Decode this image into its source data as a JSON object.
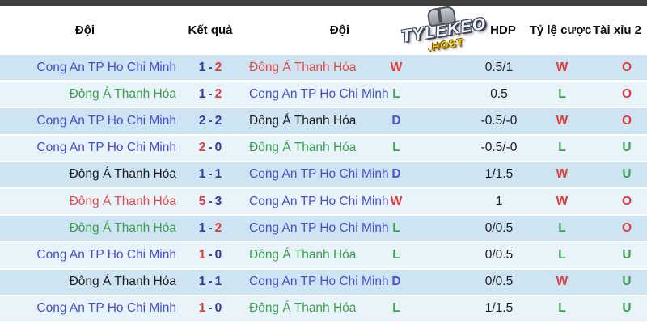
{
  "palette": {
    "blue": "#474fcb",
    "green": "#3da04e",
    "red": "#e04a4a",
    "black": "#1c1c1e",
    "navy": "#34399b",
    "result_red": "#e03c3c",
    "result_green": "#3da04e",
    "result_blue": "#474fcb",
    "hdp_text": "#1c1c1e",
    "row_dark": "#cfe4f3",
    "row_light": "#e8f3fa",
    "top_bar": "#3d3d3d",
    "logo_yellow": "#f2c21c"
  },
  "header": {
    "col_team_home": "Đội",
    "col_result": "Kết quả",
    "col_team_away": "Đội",
    "col_hdp": "HDP",
    "col_odds": "Tỷ lệ cược",
    "col_over_under": "Tài xỉu 2",
    "logo": {
      "line1": "TYLEKEO",
      "line2": ".HOST"
    }
  },
  "table": {
    "rows": [
      {
        "home": "Cong An TP Ho Chi Minh",
        "home_color": "blue",
        "score_home": "1",
        "score_home_color": "navy",
        "score_away": "2",
        "score_away_color": "result_red",
        "away": "Đông Á Thanh Hóa",
        "away_color": "red",
        "hdp_result": "W",
        "hdp_result_color": "result_red",
        "hdp": "0.5/1",
        "odds_result": "W",
        "odds_result_color": "result_red",
        "ou": "O",
        "ou_color": "result_red"
      },
      {
        "home": "Đông Á Thanh Hóa",
        "home_color": "green",
        "score_home": "1",
        "score_home_color": "navy",
        "score_away": "2",
        "score_away_color": "result_red",
        "away": "Cong An TP Ho Chi Minh",
        "away_color": "blue",
        "hdp_result": "L",
        "hdp_result_color": "result_green",
        "hdp": "0.5",
        "odds_result": "L",
        "odds_result_color": "result_green",
        "ou": "O",
        "ou_color": "result_red"
      },
      {
        "home": "Cong An TP Ho Chi Minh",
        "home_color": "blue",
        "score_home": "2",
        "score_home_color": "navy",
        "score_away": "2",
        "score_away_color": "navy",
        "away": "Đông Á Thanh Hóa",
        "away_color": "black",
        "hdp_result": "D",
        "hdp_result_color": "result_blue",
        "hdp": "-0.5/-0",
        "odds_result": "W",
        "odds_result_color": "result_red",
        "ou": "O",
        "ou_color": "result_red"
      },
      {
        "home": "Cong An TP Ho Chi Minh",
        "home_color": "blue",
        "score_home": "2",
        "score_home_color": "result_red",
        "score_away": "0",
        "score_away_color": "navy",
        "away": "Đông Á Thanh Hóa",
        "away_color": "green",
        "hdp_result": "L",
        "hdp_result_color": "result_green",
        "hdp": "-0.5/-0",
        "odds_result": "L",
        "odds_result_color": "result_green",
        "ou": "U",
        "ou_color": "result_green"
      },
      {
        "home": "Đông Á Thanh Hóa",
        "home_color": "black",
        "score_home": "1",
        "score_home_color": "navy",
        "score_away": "1",
        "score_away_color": "navy",
        "away": "Cong An TP Ho Chi Minh",
        "away_color": "blue",
        "hdp_result": "D",
        "hdp_result_color": "result_blue",
        "hdp": "1/1.5",
        "odds_result": "W",
        "odds_result_color": "result_red",
        "ou": "U",
        "ou_color": "result_green"
      },
      {
        "home": "Đông Á Thanh Hóa",
        "home_color": "red",
        "score_home": "5",
        "score_home_color": "result_red",
        "score_away": "3",
        "score_away_color": "navy",
        "away": "Cong An TP Ho Chi Minh",
        "away_color": "blue",
        "hdp_result": "W",
        "hdp_result_color": "result_red",
        "hdp": "1",
        "odds_result": "W",
        "odds_result_color": "result_red",
        "ou": "O",
        "ou_color": "result_red"
      },
      {
        "home": "Đông Á Thanh Hóa",
        "home_color": "green",
        "score_home": "1",
        "score_home_color": "navy",
        "score_away": "2",
        "score_away_color": "result_red",
        "away": "Cong An TP Ho Chi Minh",
        "away_color": "blue",
        "hdp_result": "L",
        "hdp_result_color": "result_green",
        "hdp": "0/0.5",
        "odds_result": "L",
        "odds_result_color": "result_green",
        "ou": "O",
        "ou_color": "result_red"
      },
      {
        "home": "Cong An TP Ho Chi Minh",
        "home_color": "blue",
        "score_home": "1",
        "score_home_color": "result_red",
        "score_away": "0",
        "score_away_color": "navy",
        "away": "Đông Á Thanh Hóa",
        "away_color": "green",
        "hdp_result": "L",
        "hdp_result_color": "result_green",
        "hdp": "0/0.5",
        "odds_result": "L",
        "odds_result_color": "result_green",
        "ou": "U",
        "ou_color": "result_green"
      },
      {
        "home": "Đông Á Thanh Hóa",
        "home_color": "black",
        "score_home": "1",
        "score_home_color": "navy",
        "score_away": "1",
        "score_away_color": "navy",
        "away": "Cong An TP Ho Chi Minh",
        "away_color": "blue",
        "hdp_result": "D",
        "hdp_result_color": "result_blue",
        "hdp": "0/0.5",
        "odds_result": "W",
        "odds_result_color": "result_red",
        "ou": "U",
        "ou_color": "result_green"
      },
      {
        "home": "Cong An TP Ho Chi Minh",
        "home_color": "blue",
        "score_home": "1",
        "score_home_color": "result_red",
        "score_away": "0",
        "score_away_color": "navy",
        "away": "Đông Á Thanh Hóa",
        "away_color": "green",
        "hdp_result": "L",
        "hdp_result_color": "result_green",
        "hdp": "1/1.5",
        "odds_result": "L",
        "odds_result_color": "result_green",
        "ou": "U",
        "ou_color": "result_green"
      }
    ]
  }
}
